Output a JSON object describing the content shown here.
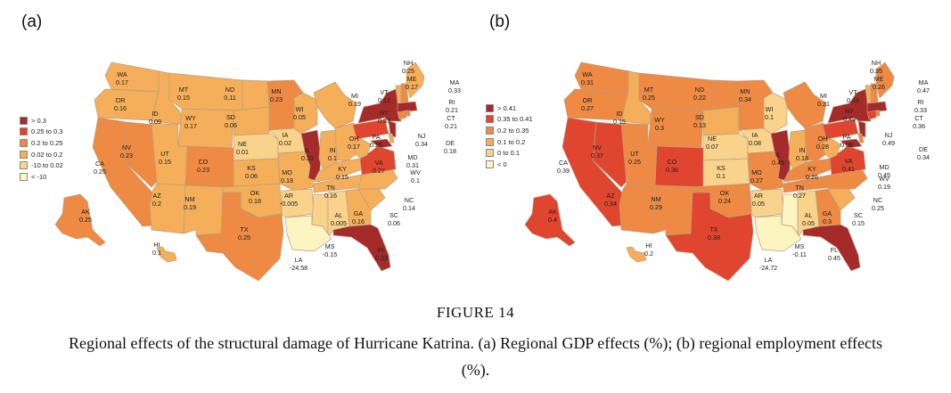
{
  "figure": {
    "title": "FIGURE 14",
    "caption": "Regional effects of the structural damage of Hurricane Katrina. (a) Regional GDP effects (%); (b) regional employment effects (%)."
  },
  "colors": {
    "c1": "#a52a2a",
    "c2": "#e0452f",
    "c3": "#ee8a43",
    "c4": "#f5ae59",
    "c5": "#f9d38b",
    "c6": "#fcf4c1"
  },
  "panels": [
    {
      "label": "(a)",
      "legend": [
        {
          "label": "> 0.3",
          "color": "c1"
        },
        {
          "label": "0.25 to 0.3",
          "color": "c2"
        },
        {
          "label": "0.2 to 0.25",
          "color": "c3"
        },
        {
          "label": "0.02 to 0.2",
          "color": "c4"
        },
        {
          "label": "-10 to 0.02",
          "color": "c5"
        },
        {
          "label": "< -10",
          "color": "c6"
        }
      ],
      "states": [
        {
          "abbr": "WA",
          "value": "0.17"
        },
        {
          "abbr": "OR",
          "value": "0.16"
        },
        {
          "abbr": "ID",
          "value": "0.09"
        },
        {
          "abbr": "MT",
          "value": "0.15"
        },
        {
          "abbr": "WY",
          "value": "0.17"
        },
        {
          "abbr": "ND",
          "value": "0.11"
        },
        {
          "abbr": "SD",
          "value": "0.06"
        },
        {
          "abbr": "NE",
          "value": "0.01"
        },
        {
          "abbr": "CA",
          "value": "0.25"
        },
        {
          "abbr": "NV",
          "value": "0.23"
        },
        {
          "abbr": "UT",
          "value": "0.15"
        },
        {
          "abbr": "CO",
          "value": "0.23"
        },
        {
          "abbr": "KS",
          "value": "0.06"
        },
        {
          "abbr": "AZ",
          "value": "0.2"
        },
        {
          "abbr": "NM",
          "value": "0.19"
        },
        {
          "abbr": "OK",
          "value": "0.18"
        },
        {
          "abbr": "TX",
          "value": "0.25"
        },
        {
          "abbr": "MN",
          "value": "0.23"
        },
        {
          "abbr": "IA",
          "value": "0.02"
        },
        {
          "abbr": "MO",
          "value": "0.18"
        },
        {
          "abbr": "AR",
          "value": "-0.005"
        },
        {
          "abbr": "LA",
          "value": "-24.58"
        },
        {
          "abbr": "WI",
          "value": "0.05"
        },
        {
          "abbr": "IL",
          "value": "0.31"
        },
        {
          "abbr": "MI",
          "value": "0.19"
        },
        {
          "abbr": "IN",
          "value": "0.1"
        },
        {
          "abbr": "OH",
          "value": "0.17"
        },
        {
          "abbr": "KY",
          "value": "0.15"
        },
        {
          "abbr": "TN",
          "value": "0.16"
        },
        {
          "abbr": "MS",
          "value": "-0.15"
        },
        {
          "abbr": "AL",
          "value": "0.005"
        },
        {
          "abbr": "GA",
          "value": "0.16"
        },
        {
          "abbr": "FL",
          "value": "0.33"
        },
        {
          "abbr": "SC",
          "value": "0.06"
        },
        {
          "abbr": "NC",
          "value": "0.14"
        },
        {
          "abbr": "VA",
          "value": "0.27"
        },
        {
          "abbr": "WV",
          "value": "0.1"
        },
        {
          "abbr": "PA",
          "value": "0.26"
        },
        {
          "abbr": "NY",
          "value": "0.33"
        },
        {
          "abbr": "VT",
          "value": "0.12"
        },
        {
          "abbr": "NH",
          "value": "0.25"
        },
        {
          "abbr": "ME",
          "value": "0.17"
        },
        {
          "abbr": "MA",
          "value": "0.33"
        },
        {
          "abbr": "RI",
          "value": "0.21"
        },
        {
          "abbr": "CT",
          "value": "0.21"
        },
        {
          "abbr": "NJ",
          "value": "0.34"
        },
        {
          "abbr": "DE",
          "value": "0.18"
        },
        {
          "abbr": "MD",
          "value": "0.31"
        },
        {
          "abbr": "AK",
          "value": "0.25"
        },
        {
          "abbr": "HI",
          "value": "0.1"
        }
      ]
    },
    {
      "label": "(b)",
      "legend": [
        {
          "label": "> 0.41",
          "color": "c1"
        },
        {
          "label": "0.35 to 0.41",
          "color": "c2"
        },
        {
          "label": "0.2 to 0.35",
          "color": "c3"
        },
        {
          "label": "0.1 to 0.2",
          "color": "c4"
        },
        {
          "label": "0 to 0.1",
          "color": "c5"
        },
        {
          "label": "< 0",
          "color": "c6"
        }
      ],
      "states": [
        {
          "abbr": "WA",
          "value": "0.31"
        },
        {
          "abbr": "OR",
          "value": "0.27"
        },
        {
          "abbr": "ID",
          "value": "0.15"
        },
        {
          "abbr": "MT",
          "value": "0.25"
        },
        {
          "abbr": "WY",
          "value": "0.3"
        },
        {
          "abbr": "ND",
          "value": "0.22"
        },
        {
          "abbr": "SD",
          "value": "0.13"
        },
        {
          "abbr": "NE",
          "value": "0.07"
        },
        {
          "abbr": "CA",
          "value": "0.39"
        },
        {
          "abbr": "NV",
          "value": "0.37"
        },
        {
          "abbr": "UT",
          "value": "0.25"
        },
        {
          "abbr": "CO",
          "value": "0.36"
        },
        {
          "abbr": "KS",
          "value": "0.1"
        },
        {
          "abbr": "AZ",
          "value": "0.34"
        },
        {
          "abbr": "NM",
          "value": "0.29"
        },
        {
          "abbr": "OK",
          "value": "0.24"
        },
        {
          "abbr": "TX",
          "value": "0.38"
        },
        {
          "abbr": "MN",
          "value": "0.34"
        },
        {
          "abbr": "IA",
          "value": "0.08"
        },
        {
          "abbr": "MO",
          "value": "0.27"
        },
        {
          "abbr": "AR",
          "value": "0.05"
        },
        {
          "abbr": "LA",
          "value": "-24.72"
        },
        {
          "abbr": "WI",
          "value": "0.1"
        },
        {
          "abbr": "IL",
          "value": "0.45"
        },
        {
          "abbr": "MI",
          "value": "0.31"
        },
        {
          "abbr": "IN",
          "value": "0.18"
        },
        {
          "abbr": "OH",
          "value": "0.28"
        },
        {
          "abbr": "KY",
          "value": "0.26"
        },
        {
          "abbr": "TN",
          "value": "0.27"
        },
        {
          "abbr": "MS",
          "value": "-0.11"
        },
        {
          "abbr": "AL",
          "value": "0.05"
        },
        {
          "abbr": "GA",
          "value": "0.3"
        },
        {
          "abbr": "FL",
          "value": "0.45"
        },
        {
          "abbr": "SC",
          "value": "0.15"
        },
        {
          "abbr": "NC",
          "value": "0.25"
        },
        {
          "abbr": "VA",
          "value": "0.41"
        },
        {
          "abbr": "WV",
          "value": "0.19"
        },
        {
          "abbr": "PA",
          "value": "0.38"
        },
        {
          "abbr": "NY",
          "value": "0.49"
        },
        {
          "abbr": "VT",
          "value": "0.19"
        },
        {
          "abbr": "NH",
          "value": "0.35"
        },
        {
          "abbr": "ME",
          "value": "0.26"
        },
        {
          "abbr": "MA",
          "value": "0.47"
        },
        {
          "abbr": "RI",
          "value": "0.33"
        },
        {
          "abbr": "CT",
          "value": "0.36"
        },
        {
          "abbr": "NJ",
          "value": "0.49"
        },
        {
          "abbr": "DE",
          "value": "0.34"
        },
        {
          "abbr": "MD",
          "value": "0.45"
        },
        {
          "abbr": "AK",
          "value": "0.4"
        },
        {
          "abbr": "HI",
          "value": "0.2"
        }
      ]
    }
  ]
}
